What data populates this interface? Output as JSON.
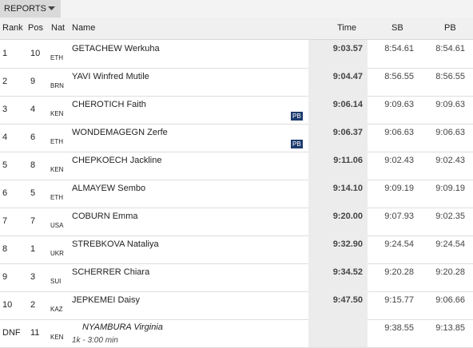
{
  "header": {
    "menu": "REPORTS"
  },
  "table": {
    "columns": [
      "Rank",
      "Pos",
      "Nat",
      "Name",
      "Time",
      "SB",
      "PB"
    ],
    "rows": [
      {
        "rank": 1,
        "pos": 10,
        "nat": "ETH",
        "name": "GETACHEW Werkuha",
        "time": "9:03.57",
        "sb": "8:54.61",
        "pb": "8:54.61"
      },
      {
        "rank": 2,
        "pos": 9,
        "nat": "BRN",
        "name": "YAVI Winfred Mutile",
        "time": "9:04.47",
        "sb": "8:56.55",
        "pb": "8:56.55"
      },
      {
        "rank": 3,
        "pos": 4,
        "nat": "KEN",
        "name": "CHEROTICH Faith",
        "time": "9:06.14",
        "sb": "9:09.63",
        "pb": "9:09.63",
        "badge": "PB"
      },
      {
        "rank": 4,
        "pos": 6,
        "nat": "ETH",
        "name": "WONDEMAGEGN Zerfe",
        "time": "9:06.37",
        "sb": "9:06.63",
        "pb": "9:06.63",
        "badge": "PB"
      },
      {
        "rank": 5,
        "pos": 8,
        "nat": "KEN",
        "name": "CHEPKOECH Jackline",
        "time": "9:11.06",
        "sb": "9:02.43",
        "pb": "9:02.43"
      },
      {
        "rank": 6,
        "pos": 5,
        "nat": "ETH",
        "name": "ALMAYEW Sembo",
        "time": "9:14.10",
        "sb": "9:09.19",
        "pb": "9:09.19"
      },
      {
        "rank": 7,
        "pos": 7,
        "nat": "USA",
        "name": "COBURN Emma",
        "time": "9:20.00",
        "sb": "9:07.93",
        "pb": "9:02.35"
      },
      {
        "rank": 8,
        "pos": 1,
        "nat": "UKR",
        "name": "STREBKOVA Nataliya",
        "time": "9:32.90",
        "sb": "9:24.54",
        "pb": "9:24.54"
      },
      {
        "rank": 9,
        "pos": 3,
        "nat": "SUI",
        "name": "SCHERRER Chiara",
        "time": "9:34.52",
        "sb": "9:20.28",
        "pb": "9:20.28"
      },
      {
        "rank": 10,
        "pos": 2,
        "nat": "KAZ",
        "name": "JEPKEMEI Daisy",
        "time": "9:47.50",
        "sb": "9:15.77",
        "pb": "9:06.66"
      },
      {
        "rank": "DNF",
        "pos": 11,
        "nat": "KEN",
        "name": "NYAMBURA Virginia",
        "sb": "9:38.55",
        "pb": "9:13.85",
        "note": "1k - 3:00 min"
      }
    ]
  }
}
